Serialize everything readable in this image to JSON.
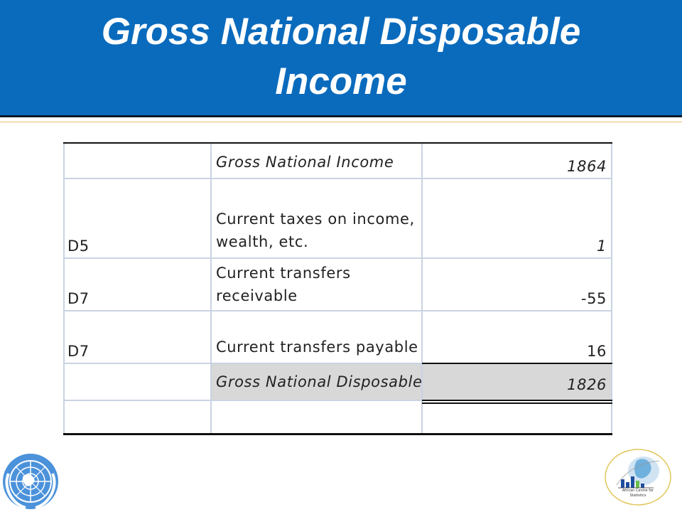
{
  "slide": {
    "title_line1": "Gross National Disposable",
    "title_line2": "Income"
  },
  "table": {
    "rows": [
      {
        "code": "",
        "description": "Gross National Income",
        "value": "1864",
        "italic": true
      },
      {
        "code": "D5",
        "description_line1": "Current taxes on income,",
        "description_line2": "wealth, etc.",
        "value": "1",
        "italic_value": true
      },
      {
        "code": "D7",
        "description_line1": "Current transfers",
        "description_line2": "receivable",
        "value": "-55"
      },
      {
        "code": "D7",
        "description": "Current transfers payable",
        "value": "16"
      },
      {
        "code": "",
        "description": "Gross National Disposable I",
        "value": "1826",
        "italic": true
      },
      {
        "code": "",
        "description": "",
        "value": ""
      }
    ]
  },
  "footer": {
    "left_logo": "un-emblem-icon",
    "right_logo_caption_line1": "African Centre for",
    "right_logo_caption_line2": "Statistics"
  },
  "colors": {
    "banner": "#0a6bbd",
    "title_text": "#ffffff",
    "total_row_shade": "#d8d8d8"
  }
}
